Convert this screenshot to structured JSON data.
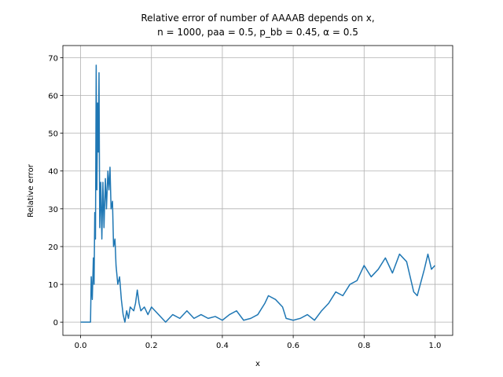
{
  "chart_data": {
    "type": "line",
    "title": [
      "Relative error of number of AAAAB depends on x,",
      "n = 1000, paa = 0.5, p_bb = 0.45, α = 0.5"
    ],
    "x_label": "x",
    "y_label": "Relative error",
    "x": [
      0.0,
      0.028,
      0.03,
      0.033,
      0.036,
      0.038,
      0.04,
      0.042,
      0.044,
      0.046,
      0.048,
      0.05,
      0.052,
      0.054,
      0.057,
      0.06,
      0.063,
      0.066,
      0.07,
      0.073,
      0.077,
      0.08,
      0.083,
      0.086,
      0.09,
      0.093,
      0.097,
      0.1,
      0.105,
      0.11,
      0.115,
      0.12,
      0.125,
      0.13,
      0.135,
      0.14,
      0.15,
      0.155,
      0.16,
      0.165,
      0.17,
      0.18,
      0.19,
      0.2,
      0.22,
      0.24,
      0.26,
      0.28,
      0.3,
      0.32,
      0.34,
      0.36,
      0.38,
      0.4,
      0.42,
      0.44,
      0.46,
      0.48,
      0.5,
      0.52,
      0.53,
      0.55,
      0.57,
      0.58,
      0.6,
      0.62,
      0.64,
      0.66,
      0.68,
      0.7,
      0.72,
      0.74,
      0.76,
      0.78,
      0.8,
      0.82,
      0.84,
      0.86,
      0.88,
      0.9,
      0.92,
      0.94,
      0.95,
      0.97,
      0.98,
      0.99,
      1.0
    ],
    "series": [
      {
        "color": "#1f77b4",
        "values": [
          0,
          0,
          12,
          6,
          17,
          10,
          29,
          22,
          68,
          35,
          58,
          45,
          66,
          25,
          37,
          22,
          37,
          25,
          38,
          30,
          40,
          35,
          41,
          30,
          32,
          20,
          22,
          15,
          10,
          12,
          6,
          2,
          0,
          3,
          1,
          4,
          3,
          5,
          8.5,
          5,
          3,
          4,
          2,
          4,
          2,
          0,
          2,
          1,
          3,
          1,
          2,
          1,
          1.5,
          0.5,
          2,
          3,
          0.5,
          1,
          2,
          5,
          7,
          6,
          4,
          1,
          0.5,
          1,
          2,
          0.5,
          3,
          5,
          8,
          7,
          10,
          11,
          15,
          12,
          14,
          17,
          13,
          18,
          16,
          8,
          7,
          14,
          18,
          14,
          15
        ]
      }
    ],
    "xlim": [
      -0.05,
      1.05
    ],
    "ylim": [
      -3.5,
      73.2
    ],
    "xticks": [
      {
        "value": 0.0,
        "label": "0.0"
      },
      0.2,
      0.4,
      0.6,
      0.8,
      {
        "value": 1.0,
        "label": "1.0"
      }
    ],
    "yticks": [
      0,
      10,
      20,
      30,
      40,
      50,
      60,
      70
    ],
    "grid": true
  }
}
